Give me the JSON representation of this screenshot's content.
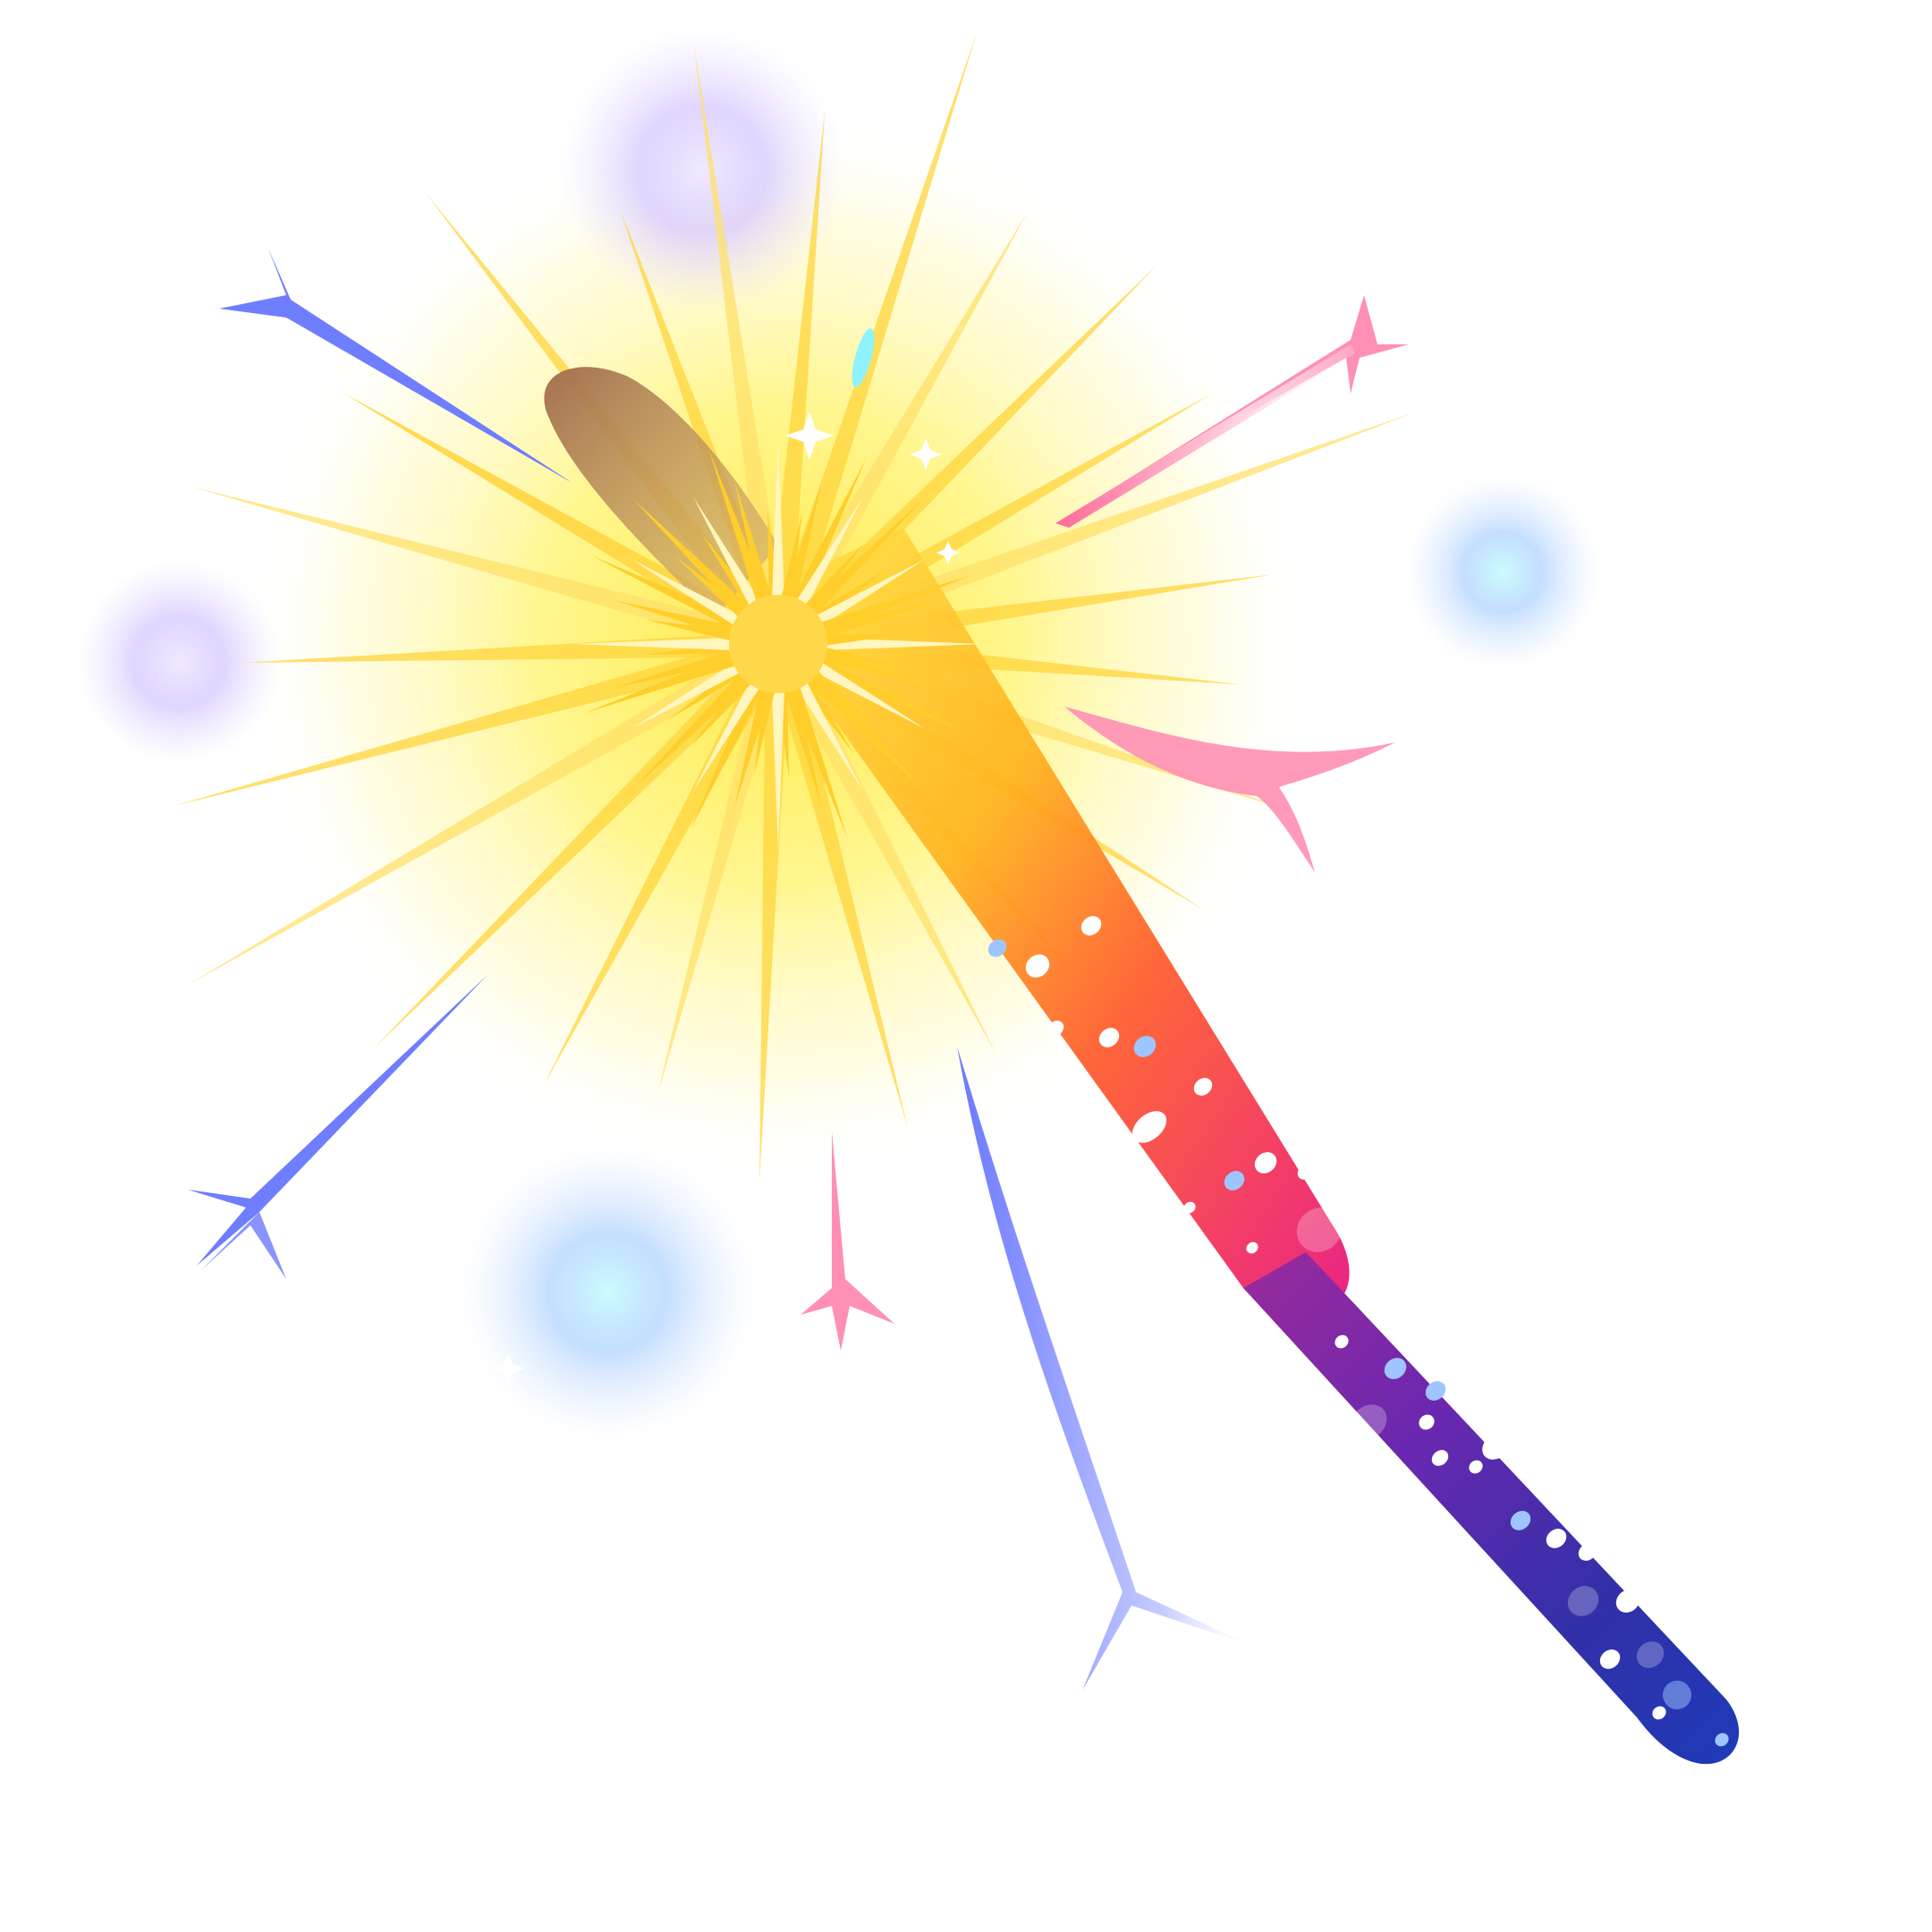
{
  "scene": {
    "subject": "sparkler-icon",
    "colors": {
      "background": "#ffffff",
      "flash_core": "#ffd84a",
      "flash_glow": "#fff25a",
      "ray": "#ffd23c",
      "bokeh_purple": "#c8b6ff",
      "bokeh_blue": "#9ec5ff",
      "bokeh_cyan": "#a8f0ff",
      "spark_pink": "#ff7fa8",
      "spark_blue": "#7a86ff",
      "stick_yellow": "#ffd21e",
      "stick_orange": "#ff6a1e",
      "stick_magenta": "#e8126e",
      "handle_purple": "#6a2aa8",
      "handle_blue": "#2a3aa8",
      "wire_brown": "#a77a55"
    }
  }
}
